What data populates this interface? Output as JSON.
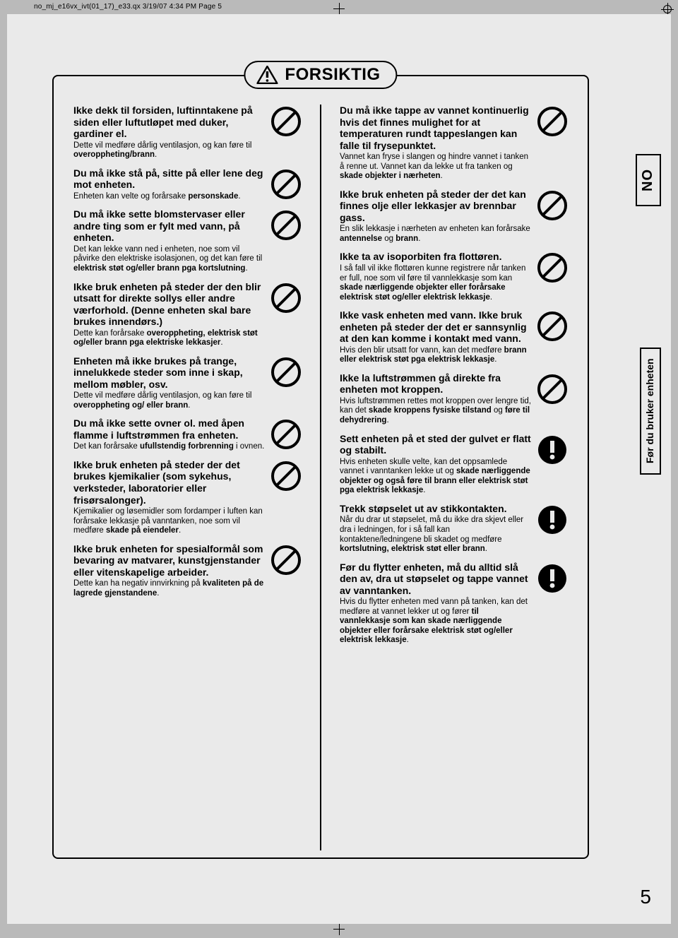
{
  "header_strip": "no_mj_e16vx_ivt(01_17)_e33.qx  3/19/07  4:34 PM  Page 5",
  "title": "FORSIKTIG",
  "page_number": "5",
  "side_tab_1": "NO",
  "side_tab_2": "Før du bruker enheten",
  "left": [
    {
      "h": "Ikke dekk til forsiden, luftinntakene på siden eller luftutløpet med duker, gardiner el.",
      "b": "Dette vil medføre dårlig ventilasjon, og kan føre til <b>overoppheting/brann</b>.",
      "sym": "prohibit"
    },
    {
      "h": "Du må ikke stå på, sitte på eller lene deg mot enheten.",
      "b": "Enheten kan velte og forårsake <b>personskade</b>.",
      "sym": "prohibit"
    },
    {
      "h": "Du må ikke sette blomstervaser eller andre ting som er fylt med vann, på enheten.",
      "b": "Det kan lekke vann ned i enheten, noe som vil påvirke den elektriske isolasjonen, og det kan føre til <b>elektrisk støt og/eller brann pga kortslutning</b>.",
      "sym": "prohibit"
    },
    {
      "h": "Ikke bruk enheten på steder der den blir utsatt for direkte sollys eller andre værforhold. (Denne enheten skal bare brukes innendørs.)",
      "b": "Dette kan forårsake <b>overoppheting, elektrisk støt og/eller brann pga elektriske lekkasjer</b>.",
      "sym": "prohibit"
    },
    {
      "h": "Enheten må ikke brukes på trange, innelukkede steder som inne i skap, mellom møbler, osv.",
      "b": "Dette vil medføre dårlig ventilasjon, og kan føre til <b>overoppheting og/ eller brann</b>.",
      "sym": "prohibit"
    },
    {
      "h": "Du må ikke sette ovner ol. med åpen flamme i luftstrømmen fra enheten.",
      "b": "Det kan forårsake <b>ufullstendig forbrenning</b> i ovnen.",
      "sym": "prohibit"
    },
    {
      "h": "Ikke bruk enheten på steder der det brukes kjemikalier (som sykehus, verksteder, laboratorier eller frisørsalonger).",
      "b": "Kjemikalier og løsemidler som fordamper i luften kan forårsake lekkasje på vanntanken, noe som vil medføre <b>skade på eiendeler</b>.",
      "sym": "prohibit"
    },
    {
      "h": "Ikke bruk enheten for spesialformål som bevaring av matvarer, kunstgjenstander eller vitenskapelige arbeider.",
      "b": "Dette kan ha negativ innvirkning på <b>kvaliteten på de lagrede gjenstandene</b>.",
      "sym": "prohibit"
    }
  ],
  "right": [
    {
      "h": "Du må ikke tappe av vannet kontinuerlig hvis det finnes mulighet for at temperaturen rundt tappeslangen kan falle til frysepunktet.",
      "b": "Vannet kan fryse i slangen og hindre vannet i tanken å renne ut. Vannet kan da lekke ut fra tanken og <b>skade objekter i nærheten</b>.",
      "sym": "prohibit"
    },
    {
      "h": "Ikke bruk enheten på steder der det kan finnes olje eller lekkasjer av brennbar gass.",
      "b": "En slik lekkasje i nærheten av enheten kan forårsake <b>antennelse</b> og <b>brann</b>.",
      "sym": "prohibit"
    },
    {
      "h": "Ikke ta av isoporbiten fra flottøren.",
      "b": "I så fall vil ikke flottøren kunne registrere når tanken er full, noe som vil føre til vannlekkasje som kan <b>skade nærliggende objekter eller forårsake elektrisk støt og/eller elektrisk lekkasje</b>.",
      "sym": "prohibit"
    },
    {
      "h": "Ikke vask enheten med vann. Ikke bruk enheten på steder der det er sannsynlig at den kan komme i kontakt med vann.",
      "b": "Hvis den blir utsatt for vann, kan det medføre <b>brann eller elektrisk støt pga elektrisk lekkasje</b>.",
      "sym": "prohibit"
    },
    {
      "h": "Ikke la luftstrømmen gå direkte fra enheten mot kroppen.",
      "b": "Hvis luftstrømmen rettes mot kroppen over lengre tid, kan det <b>skade kroppens fysiske tilstand</b> og <b>føre til dehydrering</b>.",
      "sym": "prohibit"
    },
    {
      "h": "Sett enheten på et sted der gulvet er flatt og stabilt.",
      "b": "Hvis enheten skulle velte, kan det oppsamlede vannet i vanntanken lekke ut og <b>skade nærliggende objekter og også føre til brann eller elektrisk støt pga elektrisk lekkasje</b>.",
      "sym": "mandatory"
    },
    {
      "h": "Trekk støpselet ut av stikkontakten.",
      "b": "Når du drar ut støpselet, må du ikke dra skjevt eller dra i ledningen, for i så fall kan kontaktene/ledningene bli skadet og medføre <b>kortslutning, elektrisk støt eller brann</b>.",
      "sym": "mandatory"
    },
    {
      "h": "Før du flytter enheten, må du alltid slå den av, dra ut støpselet og tappe vannet av vanntanken.",
      "b": "Hvis du flytter enheten med vann på tanken, kan det medføre at vannet lekker ut og fører <b>til vannlekkasje som kan skade nærliggende objekter eller forårsake elektrisk støt og/eller elektrisk lekkasje</b>.",
      "sym": "mandatory"
    }
  ]
}
